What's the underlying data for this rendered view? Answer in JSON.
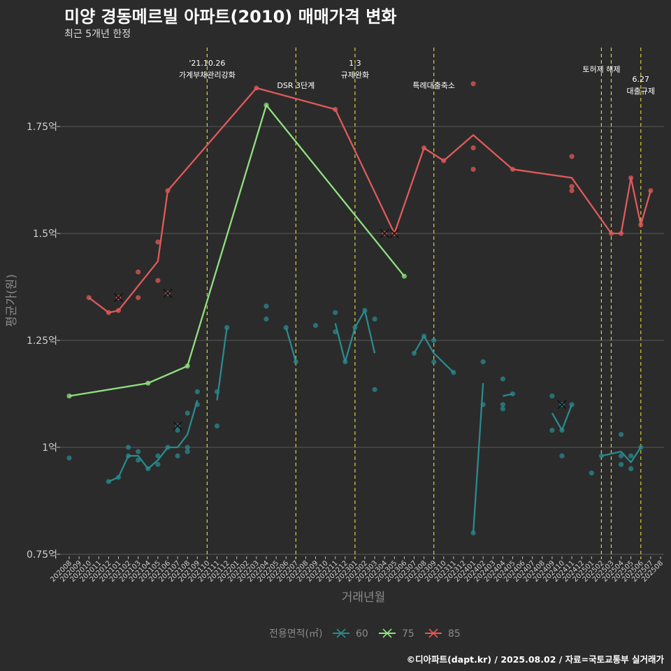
{
  "title": "미양 경동메르빌 아파트(2010) 매매가격 변화",
  "subtitle": "최근 5개년 한정",
  "caption": "©디아파트(dapt.kr) / 2025.08.02 / 자료=국토교통부 실거래가",
  "chart_data": {
    "type": "line",
    "xlabel": "거래년월",
    "ylabel": "평균가(원)",
    "ylim": [
      0.75,
      1.99
    ],
    "yticks": [
      {
        "value": 0.75,
        "label": "0.75억"
      },
      {
        "value": 1.0,
        "label": "1억"
      },
      {
        "value": 1.25,
        "label": "1.25억"
      },
      {
        "value": 1.5,
        "label": "1.5억"
      },
      {
        "value": 1.75,
        "label": "1.75억"
      }
    ],
    "categories": [
      "202008",
      "202009",
      "202010",
      "202011",
      "202012",
      "202101",
      "202102",
      "202103",
      "202104",
      "202105",
      "202106",
      "202107",
      "202108",
      "202109",
      "202110",
      "202111",
      "202112",
      "202201",
      "202202",
      "202203",
      "202204",
      "202205",
      "202206",
      "202207",
      "202208",
      "202209",
      "202210",
      "202211",
      "202212",
      "202301",
      "202302",
      "202303",
      "202304",
      "202305",
      "202306",
      "202307",
      "202308",
      "202309",
      "202310",
      "202311",
      "202312",
      "202401",
      "202402",
      "202403",
      "202404",
      "202405",
      "202406",
      "202407",
      "202408",
      "202409",
      "202410",
      "202411",
      "202412",
      "202501",
      "202502",
      "202503",
      "202504",
      "202505",
      "202506",
      "202507",
      "202508"
    ],
    "grid": true,
    "legend": {
      "title": "전용면적(㎡)",
      "position": "bottom"
    },
    "series": [
      {
        "name": "60",
        "color": "#2a8a8f",
        "line_segments": [
          [
            [
              "202012",
              0.92
            ],
            [
              "202101",
              0.93
            ],
            [
              "202102",
              0.98
            ],
            [
              "202103",
              0.98
            ],
            [
              "202104",
              0.95
            ],
            [
              "202105",
              0.97
            ],
            [
              "202106",
              1.0
            ],
            [
              "202107",
              1.0
            ],
            [
              "202108",
              1.03
            ],
            [
              "202109",
              1.11
            ]
          ],
          [
            [
              "202111",
              1.11
            ],
            [
              "202112",
              1.28
            ]
          ],
          [
            [
              "202206",
              1.28
            ],
            [
              "202207",
              1.2
            ]
          ],
          [
            [
              "202211",
              1.29
            ],
            [
              "202212",
              1.2
            ],
            [
              "202301",
              1.28
            ],
            [
              "202302",
              1.32
            ],
            [
              "202303",
              1.22
            ]
          ],
          [
            [
              "202307",
              1.22
            ],
            [
              "202308",
              1.26
            ],
            [
              "202309",
              1.22
            ],
            [
              "202311",
              1.175
            ]
          ],
          [
            [
              "202401",
              0.8
            ],
            [
              "202402",
              1.15
            ]
          ],
          [
            [
              "202404",
              1.12
            ],
            [
              "202405",
              1.125
            ]
          ],
          [
            [
              "202409",
              1.08
            ],
            [
              "202410",
              1.04
            ],
            [
              "202411",
              1.1
            ]
          ],
          [
            [
              "202502",
              0.98
            ],
            [
              "202504",
              0.99
            ],
            [
              "202505",
              0.965
            ],
            [
              "202506",
              1.0
            ]
          ]
        ],
        "points": [
          [
            "202008",
            0.975
          ],
          [
            "202012",
            0.92
          ],
          [
            "202101",
            0.93
          ],
          [
            "202102",
            1.0
          ],
          [
            "202102",
            0.98
          ],
          [
            "202103",
            0.99
          ],
          [
            "202103",
            0.97
          ],
          [
            "202104",
            0.95
          ],
          [
            "202105",
            0.96
          ],
          [
            "202105",
            0.98
          ],
          [
            "202106",
            1.0
          ],
          [
            "202107",
            0.98
          ],
          [
            "202107",
            1.04
          ],
          [
            "202108",
            1.08
          ],
          [
            "202108",
            1.0
          ],
          [
            "202108",
            0.99
          ],
          [
            "202109",
            1.13
          ],
          [
            "202109",
            1.1
          ],
          [
            "202111",
            1.13
          ],
          [
            "202111",
            1.05
          ],
          [
            "202112",
            1.28
          ],
          [
            "202204",
            1.33
          ],
          [
            "202204",
            1.3
          ],
          [
            "202206",
            1.28
          ],
          [
            "202207",
            1.2
          ],
          [
            "202209",
            1.285
          ],
          [
            "202211",
            1.315
          ],
          [
            "202211",
            1.27
          ],
          [
            "202212",
            1.2
          ],
          [
            "202301",
            1.28
          ],
          [
            "202302",
            1.32
          ],
          [
            "202303",
            1.3
          ],
          [
            "202303",
            1.135
          ],
          [
            "202307",
            1.22
          ],
          [
            "202308",
            1.26
          ],
          [
            "202309",
            1.25
          ],
          [
            "202309",
            1.2
          ],
          [
            "202311",
            1.175
          ],
          [
            "202401",
            0.8
          ],
          [
            "202402",
            1.2
          ],
          [
            "202402",
            1.1
          ],
          [
            "202404",
            1.16
          ],
          [
            "202404",
            1.1
          ],
          [
            "202404",
            1.09
          ],
          [
            "202405",
            1.125
          ],
          [
            "202409",
            1.12
          ],
          [
            "202409",
            1.04
          ],
          [
            "202410",
            1.04
          ],
          [
            "202410",
            0.98
          ],
          [
            "202411",
            1.1
          ],
          [
            "202501",
            0.94
          ],
          [
            "202502",
            0.98
          ],
          [
            "202504",
            1.03
          ],
          [
            "202504",
            0.98
          ],
          [
            "202504",
            0.96
          ],
          [
            "202505",
            0.98
          ],
          [
            "202505",
            0.95
          ],
          [
            "202506",
            1.0
          ]
        ],
        "cancelled": [
          [
            "202107",
            1.05
          ],
          [
            "202410",
            1.1
          ]
        ]
      },
      {
        "name": "75",
        "color": "#90e080",
        "line_segments": [
          [
            [
              "202008",
              1.12
            ],
            [
              "202104",
              1.15
            ],
            [
              "202108",
              1.19
            ],
            [
              "202204",
              1.8
            ],
            [
              "202306",
              1.4
            ]
          ]
        ],
        "points": [
          [
            "202008",
            1.12
          ],
          [
            "202104",
            1.15
          ],
          [
            "202108",
            1.19
          ],
          [
            "202204",
            1.8
          ],
          [
            "202306",
            1.4
          ]
        ],
        "cancelled": []
      },
      {
        "name": "85",
        "color": "#e05a5a",
        "line_segments": [
          [
            [
              "202010",
              1.35
            ],
            [
              "202012",
              1.315
            ],
            [
              "202101",
              1.32
            ],
            [
              "202105",
              1.435
            ],
            [
              "202106",
              1.6
            ],
            [
              "202203",
              1.84
            ],
            [
              "202211",
              1.79
            ],
            [
              "202305",
              1.5
            ],
            [
              "202308",
              1.7
            ],
            [
              "202310",
              1.67
            ],
            [
              "202401",
              1.73
            ],
            [
              "202405",
              1.65
            ],
            [
              "202411",
              1.63
            ],
            [
              "202503",
              1.5
            ],
            [
              "202504",
              1.5
            ],
            [
              "202505",
              1.63
            ],
            [
              "202506",
              1.52
            ],
            [
              "202507",
              1.6
            ]
          ]
        ],
        "points": [
          [
            "202010",
            1.35
          ],
          [
            "202012",
            1.315
          ],
          [
            "202101",
            1.32
          ],
          [
            "202103",
            1.41
          ],
          [
            "202103",
            1.35
          ],
          [
            "202105",
            1.48
          ],
          [
            "202105",
            1.39
          ],
          [
            "202106",
            1.6
          ],
          [
            "202203",
            1.84
          ],
          [
            "202211",
            1.79
          ],
          [
            "202305",
            1.5
          ],
          [
            "202308",
            1.7
          ],
          [
            "202310",
            1.67
          ],
          [
            "202401",
            1.85
          ],
          [
            "202401",
            1.7
          ],
          [
            "202401",
            1.65
          ],
          [
            "202405",
            1.65
          ],
          [
            "202411",
            1.68
          ],
          [
            "202411",
            1.61
          ],
          [
            "202411",
            1.6
          ],
          [
            "202503",
            1.5
          ],
          [
            "202504",
            1.5
          ],
          [
            "202505",
            1.63
          ],
          [
            "202506",
            1.52
          ],
          [
            "202507",
            1.6
          ]
        ],
        "cancelled": [
          [
            "202101",
            1.35
          ],
          [
            "202106",
            1.36
          ],
          [
            "202304",
            1.5
          ],
          [
            "202305",
            1.5
          ]
        ]
      }
    ],
    "vlines": [
      {
        "x": "202110",
        "labels": [
          "'21.10.26",
          "가계부채관리강화"
        ]
      },
      {
        "x": "202207",
        "labels": [
          "DSR 3단계"
        ]
      },
      {
        "x": "202301",
        "labels": [
          "1.3",
          "규제완화"
        ]
      },
      {
        "x": "202309",
        "labels": [
          "특례대출축소"
        ]
      },
      {
        "x": "202502",
        "labels": [
          "토허제 해제"
        ]
      },
      {
        "x": "202503",
        "labels": []
      },
      {
        "x": "202506",
        "labels": [
          "6.27",
          "대출규제"
        ]
      }
    ],
    "vline_color": "#d4d43a"
  }
}
